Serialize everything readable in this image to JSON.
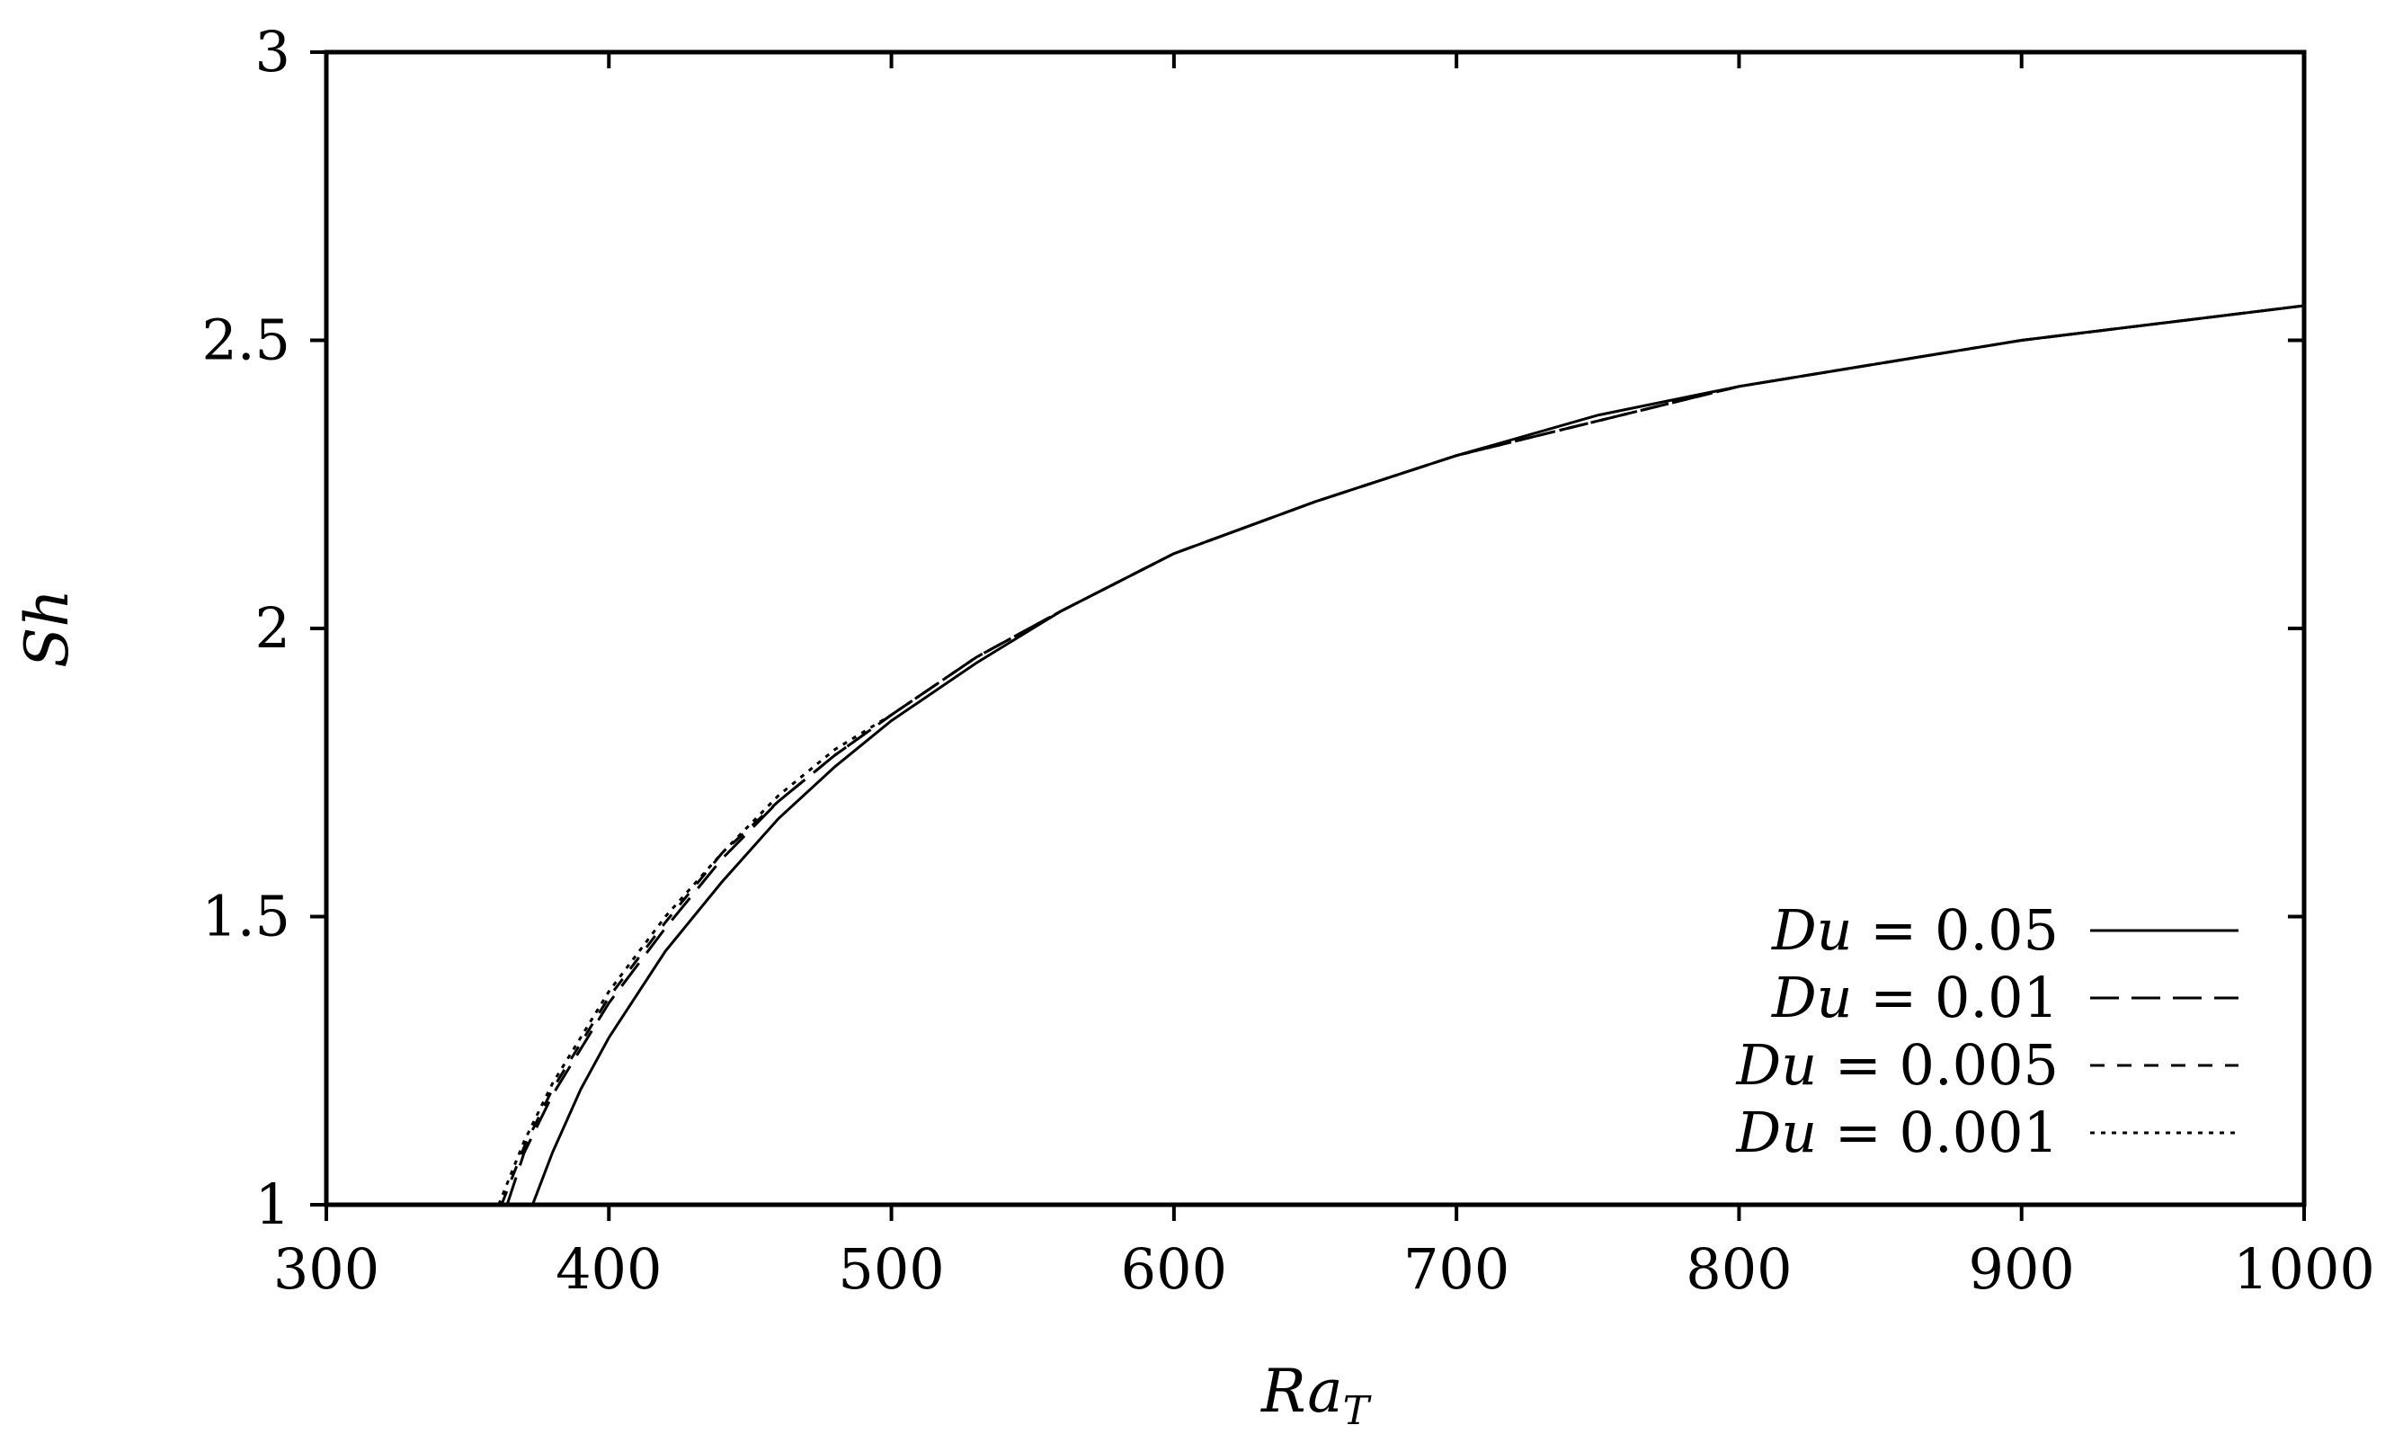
{
  "chart_data": {
    "type": "line",
    "xlabel": {
      "main": "Ra",
      "sub": "T"
    },
    "ylabel": "Sh",
    "xlim": [
      300,
      1000
    ],
    "ylim": [
      1,
      3
    ],
    "xticks": [
      300,
      400,
      500,
      600,
      700,
      800,
      900,
      1000
    ],
    "xtick_labels": [
      "300",
      "400",
      "500",
      "600",
      "700",
      "800",
      "900",
      "1000"
    ],
    "yticks": [
      1,
      1.5,
      2,
      2.5,
      3
    ],
    "ytick_labels": [
      "1",
      "1.5",
      "2",
      "2.5",
      "3"
    ],
    "grid": false,
    "legend_position": "bottom-right",
    "series": [
      {
        "name": "Du = 0.05",
        "label": {
          "var": "Du",
          "eq": " = 0.05"
        },
        "dash": "solid",
        "x": [
          373,
          380,
          390,
          400,
          420,
          440,
          460,
          480,
          500,
          530,
          560,
          600,
          650,
          700,
          750,
          800,
          850,
          900,
          950,
          1000
        ],
        "y": [
          1.0,
          1.09,
          1.2,
          1.29,
          1.44,
          1.56,
          1.67,
          1.76,
          1.84,
          1.94,
          2.03,
          2.13,
          2.22,
          2.3,
          2.37,
          2.42,
          2.46,
          2.5,
          2.53,
          2.56
        ]
      },
      {
        "name": "Du = 0.01",
        "label": {
          "var": "Du",
          "eq": " = 0.01"
        },
        "dash": "long",
        "x": [
          364,
          370,
          380,
          390,
          400,
          420,
          440,
          460,
          480,
          500,
          530,
          560,
          600,
          650,
          700,
          750,
          800,
          850,
          900,
          950,
          1000
        ],
        "y": [
          1.0,
          1.09,
          1.19,
          1.27,
          1.35,
          1.48,
          1.6,
          1.7,
          1.78,
          1.85,
          1.95,
          2.03,
          2.13,
          2.22,
          2.3,
          2.36,
          2.42,
          2.46,
          2.5,
          2.53,
          2.56
        ]
      },
      {
        "name": "Du = 0.005",
        "label": {
          "var": "Du",
          "eq": " = 0.005"
        },
        "dash": "short",
        "x": [
          362,
          370,
          380,
          390,
          400,
          420,
          440,
          460,
          480,
          500,
          530,
          560,
          600,
          650,
          700,
          750,
          800,
          850,
          900,
          950,
          1000
        ],
        "y": [
          1.0,
          1.1,
          1.2,
          1.28,
          1.36,
          1.49,
          1.61,
          1.7,
          1.78,
          1.85,
          1.95,
          2.03,
          2.13,
          2.22,
          2.3,
          2.36,
          2.42,
          2.46,
          2.5,
          2.53,
          2.56
        ]
      },
      {
        "name": "Du = 0.001",
        "label": {
          "var": "Du",
          "eq": " = 0.001"
        },
        "dash": "dotted",
        "x": [
          361,
          370,
          380,
          390,
          400,
          420,
          440,
          460,
          480,
          500,
          530,
          560,
          600,
          650,
          700,
          750,
          800,
          850,
          900,
          950,
          1000
        ],
        "y": [
          1.0,
          1.11,
          1.21,
          1.29,
          1.37,
          1.5,
          1.61,
          1.71,
          1.79,
          1.85,
          1.95,
          2.03,
          2.13,
          2.22,
          2.3,
          2.36,
          2.42,
          2.46,
          2.5,
          2.53,
          2.56
        ]
      }
    ]
  }
}
